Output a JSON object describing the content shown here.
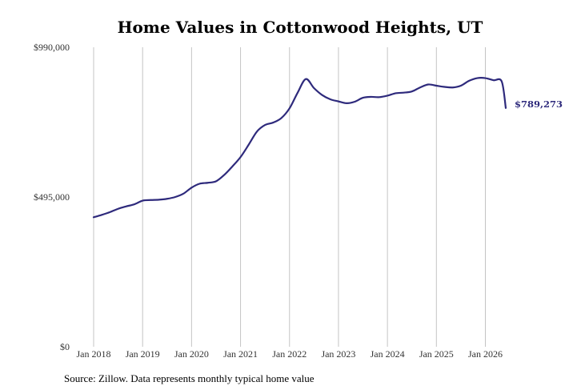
{
  "chart_data": {
    "type": "line",
    "title": "Home Values in Cottonwood Heights, UT",
    "xlabel": "",
    "ylabel": "",
    "ylim": [
      0,
      990000
    ],
    "xlim": [
      "2018-01",
      "2026-06"
    ],
    "y_ticks": [
      {
        "value": 0,
        "label": "$0"
      },
      {
        "value": 495000,
        "label": "$495,000"
      },
      {
        "value": 990000,
        "label": "$990,000"
      }
    ],
    "x_ticks": [
      {
        "date": "2018-01",
        "label": "Jan 2018"
      },
      {
        "date": "2019-01",
        "label": "Jan 2019"
      },
      {
        "date": "2020-01",
        "label": "Jan 2020"
      },
      {
        "date": "2021-01",
        "label": "Jan 2021"
      },
      {
        "date": "2022-01",
        "label": "Jan 2022"
      },
      {
        "date": "2023-01",
        "label": "Jan 2023"
      },
      {
        "date": "2024-01",
        "label": "Jan 2024"
      },
      {
        "date": "2025-01",
        "label": "Jan 2025"
      },
      {
        "date": "2026-01",
        "label": "Jan 2026"
      }
    ],
    "grid": {
      "vertical": true,
      "horizontal": false
    },
    "series": [
      {
        "color": "#2e2a7c",
        "x": [
          "2018-01",
          "2018-03",
          "2018-05",
          "2018-07",
          "2018-09",
          "2018-11",
          "2019-01",
          "2019-03",
          "2019-05",
          "2019-07",
          "2019-09",
          "2019-11",
          "2020-01",
          "2020-03",
          "2020-05",
          "2020-07",
          "2020-09",
          "2020-11",
          "2021-01",
          "2021-03",
          "2021-05",
          "2021-07",
          "2021-09",
          "2021-11",
          "2022-01",
          "2022-03",
          "2022-05",
          "2022-07",
          "2022-09",
          "2022-11",
          "2023-01",
          "2023-03",
          "2023-05",
          "2023-07",
          "2023-09",
          "2023-11",
          "2024-01",
          "2024-03",
          "2024-05",
          "2024-07",
          "2024-09",
          "2024-11",
          "2025-01",
          "2025-03",
          "2025-05",
          "2025-07",
          "2025-09",
          "2025-11",
          "2026-01",
          "2026-03",
          "2026-05",
          "2026-06"
        ],
        "values": [
          428000,
          436000,
          445000,
          456000,
          464000,
          471000,
          483000,
          485000,
          486000,
          489000,
          495000,
          506000,
          526000,
          539000,
          542000,
          547000,
          568000,
          596000,
          627000,
          668000,
          711000,
          733000,
          741000,
          756000,
          788000,
          840000,
          885000,
          855000,
          832000,
          818000,
          811000,
          805000,
          810000,
          823000,
          826000,
          825000,
          830000,
          838000,
          840000,
          844000,
          857000,
          867000,
          863000,
          859000,
          857000,
          863000,
          879000,
          888000,
          888000,
          881000,
          877000,
          789273
        ]
      }
    ],
    "end_label": "$789,273",
    "end_label_color": "#2e2a7c",
    "source": "Source: Zillow. Data represents monthly typical home value"
  }
}
